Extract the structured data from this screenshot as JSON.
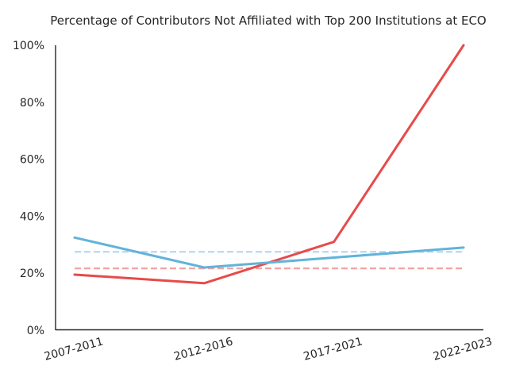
{
  "chart_data": {
    "type": "line",
    "title": "Percentage of Contributors Not Affiliated with Top 200 Institutions at ECO",
    "xlabel": "",
    "ylabel": "",
    "categories": [
      "2007-2011",
      "2012-2016",
      "2017-2021",
      "2022-2023"
    ],
    "y_tick_labels": [
      "0%",
      "20%",
      "40%",
      "60%",
      "80%",
      "100%"
    ],
    "y_ticks": [
      0,
      20,
      40,
      60,
      80,
      100
    ],
    "ylim": [
      0,
      100
    ],
    "grid": false,
    "legend": "none",
    "series": [
      {
        "values": [
          19.5,
          16.5,
          31,
          100
        ],
        "color": "#e84a4a",
        "style": "solid"
      },
      {
        "values": [
          32.5,
          22,
          25.5,
          29
        ],
        "color": "#62b3d9",
        "style": "solid"
      }
    ],
    "reference_lines": [
      {
        "value": 21.7,
        "color": "#f4a3a3",
        "style": "dashed"
      },
      {
        "value": 27.5,
        "color": "#b5d9ef",
        "style": "dashed"
      }
    ]
  }
}
